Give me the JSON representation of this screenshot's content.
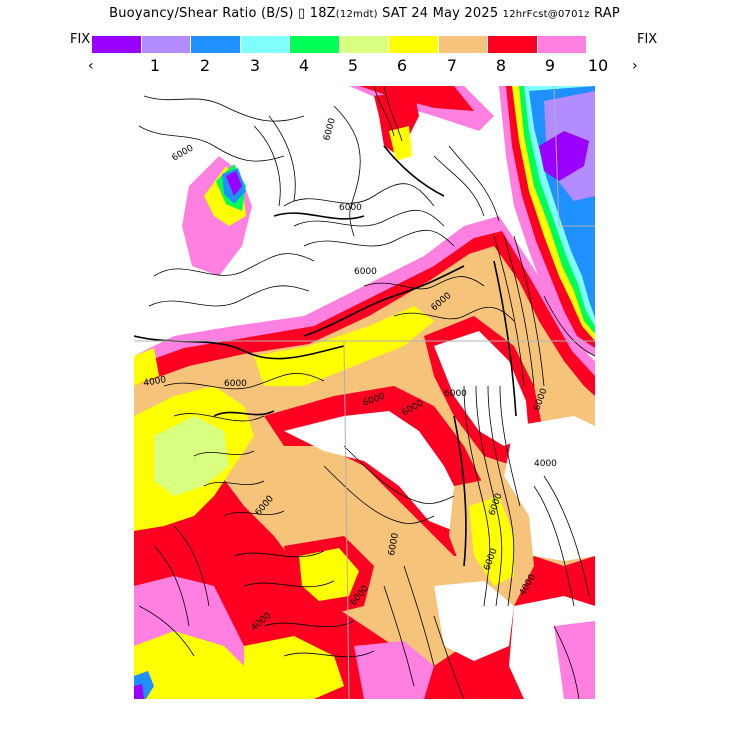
{
  "header": {
    "title_main": "Buoyancy/Shear Ratio (B/S)",
    "title_mid": "18Z",
    "title_mid_sub": "(12mdt)",
    "title_date": "SAT 24 May 2025",
    "title_run": "12hrFcst@0701z",
    "title_model": "RAP",
    "fix_left": "FIX",
    "fix_right": "FIX"
  },
  "colorbar": {
    "colors": [
      "#9900ff",
      "#b38cff",
      "#1e90ff",
      "#80ffff",
      "#00ff55",
      "#d9ff80",
      "#ffff00",
      "#f5c37a",
      "#ff0022",
      "#ff80e0"
    ],
    "ticks": [
      "1",
      "2",
      "3",
      "4",
      "5",
      "6",
      "7",
      "8",
      "9",
      "10"
    ],
    "left_arrow": "‹",
    "right_arrow": "›"
  },
  "map": {
    "contour_labels": [
      "6000",
      "6000",
      "6000",
      "6000",
      "6000",
      "4000",
      "6000",
      "6000",
      "6000",
      "6000",
      "6000",
      "6000",
      "6000",
      "4000",
      "6000",
      "6000",
      "4000",
      "6000",
      "4000"
    ]
  }
}
